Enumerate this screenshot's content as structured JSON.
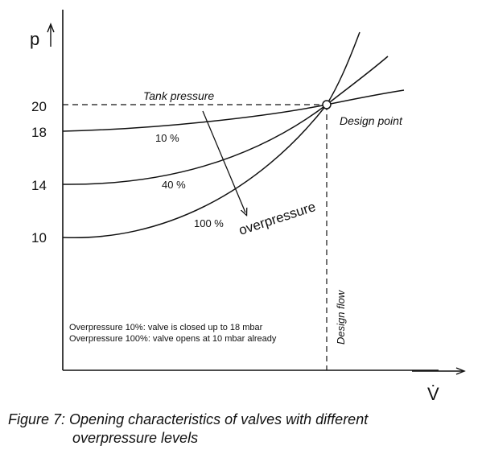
{
  "axes": {
    "y_label": "p",
    "x_label": "V̇",
    "y_ticks": [
      "20",
      "18",
      "14",
      "10"
    ]
  },
  "labels": {
    "tank_pressure": "Tank pressure",
    "design_point": "Design point",
    "design_flow": "Design flow",
    "overpressure": "overpressure",
    "curve_10": "10 %",
    "curve_40": "40 %",
    "curve_100": "100 %"
  },
  "notes": {
    "line1": "Overpressure 10%: valve is closed up to 18 mbar",
    "line2": "Overpressure 100%: valve opens at 10 mbar already"
  },
  "caption": {
    "line1": "Figure 7: Opening characteristics of valves with different",
    "line2": "overpressure levels"
  }
}
